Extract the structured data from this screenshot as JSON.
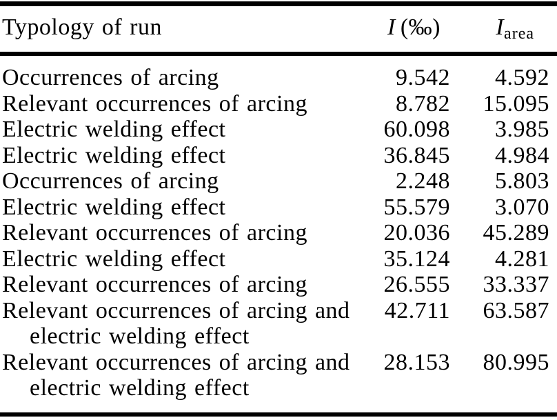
{
  "table": {
    "header": {
      "col1": "Typology of run",
      "col2_symbol": "I",
      "col2_unit": "(‰)",
      "col3_symbol": "I",
      "col3_subscript": "area"
    },
    "rows": [
      {
        "typology": "Occurrences of arcing",
        "i": "9.542",
        "i_area": "4.592"
      },
      {
        "typology": "Relevant occurrences of arcing",
        "i": "8.782",
        "i_area": "15.095"
      },
      {
        "typology": "Electric welding effect",
        "i": "60.098",
        "i_area": "3.985"
      },
      {
        "typology": "Electric welding effect",
        "i": "36.845",
        "i_area": "4.984"
      },
      {
        "typology": "Occurrences of arcing",
        "i": "2.248",
        "i_area": "5.803"
      },
      {
        "typology": "Electric welding effect",
        "i": "55.579",
        "i_area": "3.070"
      },
      {
        "typology": "Relevant occurrences of arcing",
        "i": "20.036",
        "i_area": "45.289"
      },
      {
        "typology": "Electric welding effect",
        "i": "35.124",
        "i_area": "4.281"
      },
      {
        "typology": "Relevant occurrences of arcing",
        "i": "26.555",
        "i_area": "33.337"
      },
      {
        "typology": "Relevant occurrences of arcing and electric welding effect",
        "i": "42.711",
        "i_area": "63.587"
      },
      {
        "typology": "Relevant occurrences of arcing and electric welding effect",
        "i": "28.153",
        "i_area": "80.995"
      }
    ],
    "colors": {
      "text": "#000000",
      "background": "#ffffff",
      "rule": "#000000"
    }
  }
}
